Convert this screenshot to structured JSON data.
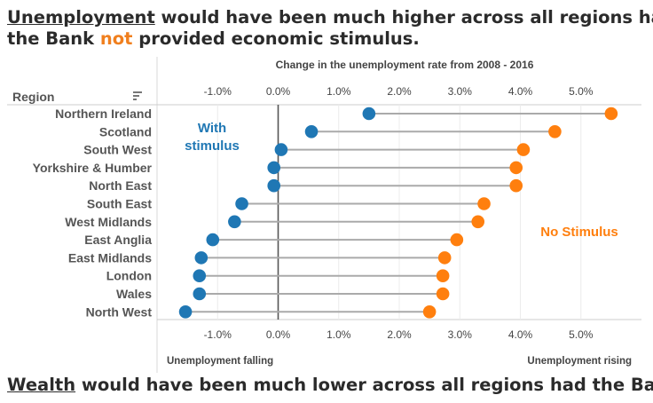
{
  "headline1": {
    "word": "Unemployment",
    "part1": " would have been much higher across all regions had",
    "part2": "the Bank ",
    "emph": "not",
    "part3": " provided economic stimulus."
  },
  "headline2": {
    "word": "Wealth",
    "rest": " would have been much lower across all regions had the Bank"
  },
  "colors": {
    "with": "#1f77b4",
    "without": "#ff7f0e",
    "connector": "#aaaaaa",
    "zero": "#555555"
  },
  "chart_data": {
    "type": "dumbbell",
    "title": "Change in the unemployment rate from 2008 - 2016",
    "row_header": "Region",
    "xlim": [
      -2.0,
      6.0
    ],
    "ticks": [
      -1.0,
      0.0,
      1.0,
      2.0,
      3.0,
      4.0,
      5.0
    ],
    "tick_labels": [
      "-1.0%",
      "0.0%",
      "1.0%",
      "2.0%",
      "3.0%",
      "4.0%",
      "5.0%"
    ],
    "categories": [
      "Northern Ireland",
      "Scotland",
      "South West",
      "Yorkshire & Humber",
      "North East",
      "South East",
      "West Midlands",
      "East Anglia",
      "East Midlands",
      "London",
      "Wales",
      "North West"
    ],
    "series": [
      {
        "name": "With stimulus",
        "values": [
          1.5,
          0.55,
          0.05,
          -0.07,
          -0.07,
          -0.6,
          -0.72,
          -1.08,
          -1.27,
          -1.3,
          -1.3,
          -1.53
        ]
      },
      {
        "name": "No Stimulus",
        "values": [
          5.5,
          4.57,
          4.05,
          3.93,
          3.93,
          3.4,
          3.3,
          2.95,
          2.75,
          2.72,
          2.72,
          2.5
        ]
      }
    ],
    "annotations": {
      "with_line1": "With",
      "with_line2": "stimulus",
      "without": "No Stimulus",
      "falling": "Unemployment falling",
      "rising": "Unemployment rising"
    },
    "grid": true
  }
}
